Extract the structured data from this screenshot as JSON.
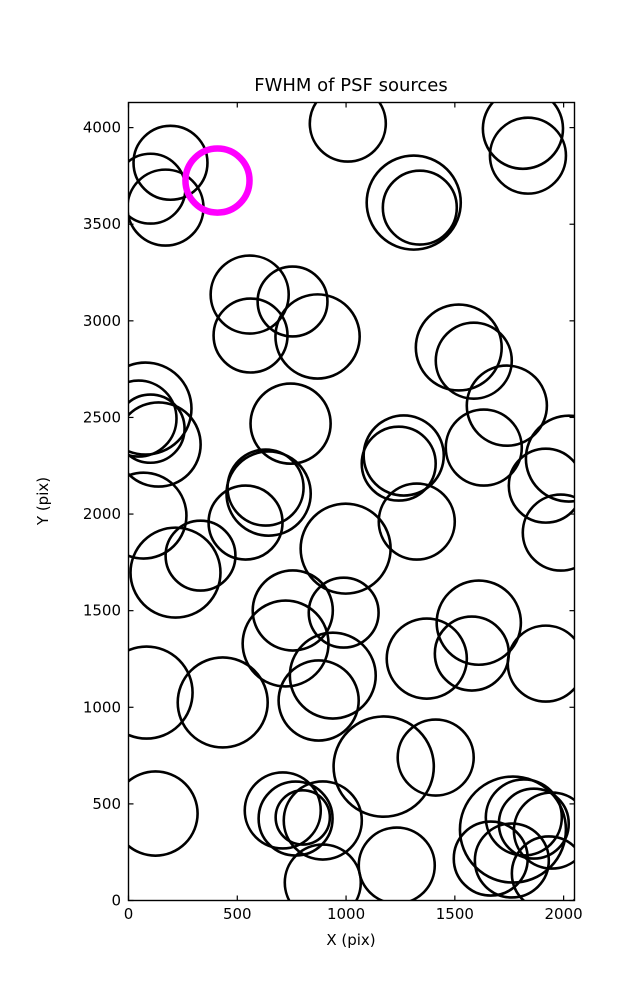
{
  "chart_data": {
    "type": "scatter",
    "title": "FWHM of PSF sources",
    "xlabel": "X (pix)",
    "ylabel": "Y (pix)",
    "xlim": [
      0,
      2050
    ],
    "ylim": [
      0,
      4130
    ],
    "xticks": [
      0,
      500,
      1000,
      1500,
      2000
    ],
    "yticks": [
      0,
      500,
      1000,
      1500,
      2000,
      2500,
      3000,
      3500,
      4000
    ],
    "grid": false,
    "legend": null,
    "marker_style": {
      "stroke_color": "#000000",
      "stroke_width": 2.6,
      "fill": "none"
    },
    "highlight_style": {
      "stroke_color": "#ff00ff",
      "stroke_width": 6.5,
      "fill": "none"
    },
    "circles": [
      {
        "x": 193,
        "y": 3818,
        "r": 180
      },
      {
        "x": 101,
        "y": 3684,
        "r": 170
      },
      {
        "x": 170,
        "y": 3586,
        "r": 185
      },
      {
        "x": 1008,
        "y": 4021,
        "r": 185
      },
      {
        "x": 1813,
        "y": 3994,
        "r": 195
      },
      {
        "x": 1836,
        "y": 3855,
        "r": 185
      },
      {
        "x": 1311,
        "y": 3612,
        "r": 229
      },
      {
        "x": 1339,
        "y": 3586,
        "r": 180
      },
      {
        "x": 557,
        "y": 3136,
        "r": 190
      },
      {
        "x": 754,
        "y": 3100,
        "r": 170
      },
      {
        "x": 561,
        "y": 2924,
        "r": 180
      },
      {
        "x": 869,
        "y": 2919,
        "r": 205
      },
      {
        "x": 1518,
        "y": 2862,
        "r": 209
      },
      {
        "x": 1587,
        "y": 2794,
        "r": 185
      },
      {
        "x": 78,
        "y": 2546,
        "r": 224
      },
      {
        "x": 46,
        "y": 2494,
        "r": 185
      },
      {
        "x": 101,
        "y": 2442,
        "r": 166
      },
      {
        "x": 138,
        "y": 2360,
        "r": 205
      },
      {
        "x": 745,
        "y": 2468,
        "r": 195
      },
      {
        "x": 1739,
        "y": 2561,
        "r": 195
      },
      {
        "x": 1633,
        "y": 2344,
        "r": 185
      },
      {
        "x": 2024,
        "y": 2287,
        "r": 209
      },
      {
        "x": 1918,
        "y": 2147,
        "r": 180
      },
      {
        "x": 1987,
        "y": 1904,
        "r": 185
      },
      {
        "x": 1265,
        "y": 2303,
        "r": 195
      },
      {
        "x": 1242,
        "y": 2261,
        "r": 180
      },
      {
        "x": 1325,
        "y": 1961,
        "r": 185
      },
      {
        "x": 630,
        "y": 2137,
        "r": 185
      },
      {
        "x": 644,
        "y": 2106,
        "r": 205
      },
      {
        "x": 69,
        "y": 1992,
        "r": 209
      },
      {
        "x": 216,
        "y": 1697,
        "r": 219
      },
      {
        "x": 331,
        "y": 1785,
        "r": 170
      },
      {
        "x": 538,
        "y": 1956,
        "r": 180
      },
      {
        "x": 998,
        "y": 1821,
        "r": 219
      },
      {
        "x": 1610,
        "y": 1438,
        "r": 205
      },
      {
        "x": 1578,
        "y": 1278,
        "r": 180
      },
      {
        "x": 1371,
        "y": 1252,
        "r": 195
      },
      {
        "x": 1918,
        "y": 1226,
        "r": 185
      },
      {
        "x": 755,
        "y": 1501,
        "r": 195
      },
      {
        "x": 722,
        "y": 1330,
        "r": 209
      },
      {
        "x": 989,
        "y": 1490,
        "r": 170
      },
      {
        "x": 939,
        "y": 1164,
        "r": 209
      },
      {
        "x": 83,
        "y": 1076,
        "r": 224
      },
      {
        "x": 433,
        "y": 1025,
        "r": 219
      },
      {
        "x": 874,
        "y": 1035,
        "r": 195
      },
      {
        "x": 124,
        "y": 450,
        "r": 205
      },
      {
        "x": 709,
        "y": 466,
        "r": 185
      },
      {
        "x": 768,
        "y": 424,
        "r": 180
      },
      {
        "x": 801,
        "y": 430,
        "r": 132
      },
      {
        "x": 893,
        "y": 414,
        "r": 190
      },
      {
        "x": 1173,
        "y": 693,
        "r": 244
      },
      {
        "x": 1412,
        "y": 740,
        "r": 185
      },
      {
        "x": 1233,
        "y": 181,
        "r": 185
      },
      {
        "x": 893,
        "y": 93,
        "r": 185
      },
      {
        "x": 1665,
        "y": 217,
        "r": 180
      },
      {
        "x": 1767,
        "y": 367,
        "r": 258
      },
      {
        "x": 1817,
        "y": 430,
        "r": 185
      },
      {
        "x": 1863,
        "y": 398,
        "r": 170
      },
      {
        "x": 1946,
        "y": 362,
        "r": 185
      },
      {
        "x": 1762,
        "y": 207,
        "r": 180
      },
      {
        "x": 1932,
        "y": 140,
        "r": 180
      }
    ],
    "highlight_circle": {
      "x": 409,
      "y": 3726,
      "r": 156
    }
  }
}
